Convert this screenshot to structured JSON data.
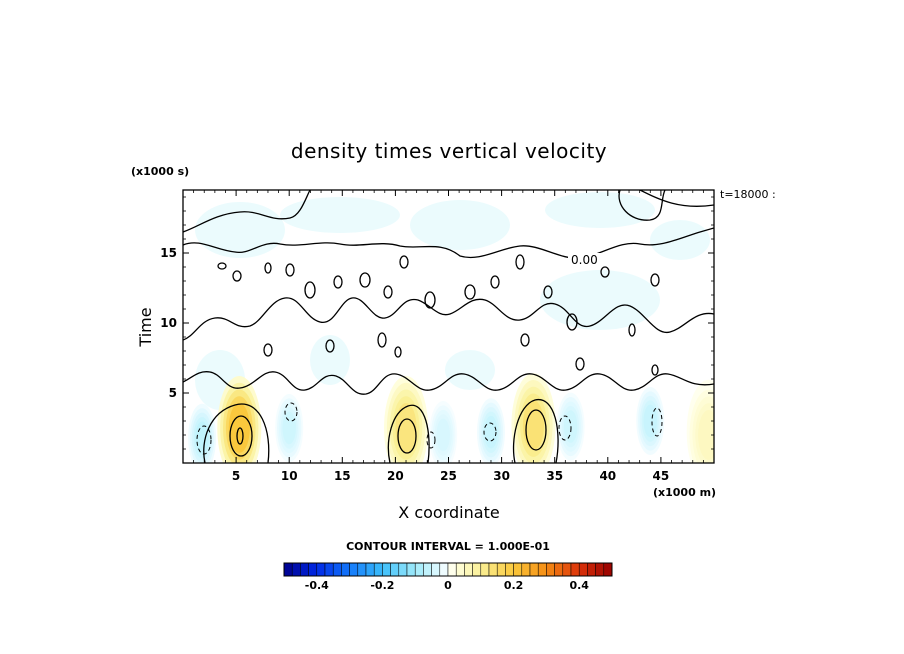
{
  "chart_data": {
    "type": "heatmap",
    "title": "density times vertical velocity",
    "xlabel": "X coordinate",
    "ylabel": "Time",
    "x_units_label": "(x1000 m)",
    "y_units_label": "(x1000 s)",
    "time_stamp_label": "t=18000 :",
    "contour_label": "0.00",
    "contour_interval_text": "CONTOUR INTERVAL = 1.000E-01",
    "xlim": [
      0,
      50
    ],
    "ylim": [
      0,
      19.5
    ],
    "x_ticks": [
      5,
      10,
      15,
      20,
      25,
      30,
      35,
      40,
      45
    ],
    "y_ticks": [
      5,
      10,
      15
    ],
    "colorbar": {
      "range": [
        -0.5,
        0.5
      ],
      "ticks": [
        -0.4,
        -0.2,
        0,
        0.2,
        0.4
      ],
      "tick_labels": [
        "-0.4",
        "-0.2",
        "0",
        "0.2",
        "0.4"
      ]
    },
    "positive_cells": [
      {
        "x": 5.3,
        "y": 2.5,
        "peak": 0.22
      },
      {
        "x": 21.0,
        "y": 2.5,
        "peak": 0.14
      },
      {
        "x": 33.0,
        "y": 2.7,
        "peak": 0.15
      },
      {
        "x": 49.5,
        "y": 2.0,
        "peak": 0.06
      }
    ],
    "negative_cells": [
      {
        "x": 1.8,
        "y": 1.8,
        "peak": -0.07
      },
      {
        "x": 10.0,
        "y": 2.5,
        "peak": -0.05
      },
      {
        "x": 24.5,
        "y": 2.0,
        "peak": -0.04
      },
      {
        "x": 29.0,
        "y": 2.2,
        "peak": -0.06
      },
      {
        "x": 36.5,
        "y": 2.6,
        "peak": -0.05
      },
      {
        "x": 44.0,
        "y": 3.0,
        "peak": -0.06
      }
    ],
    "grid": false
  }
}
